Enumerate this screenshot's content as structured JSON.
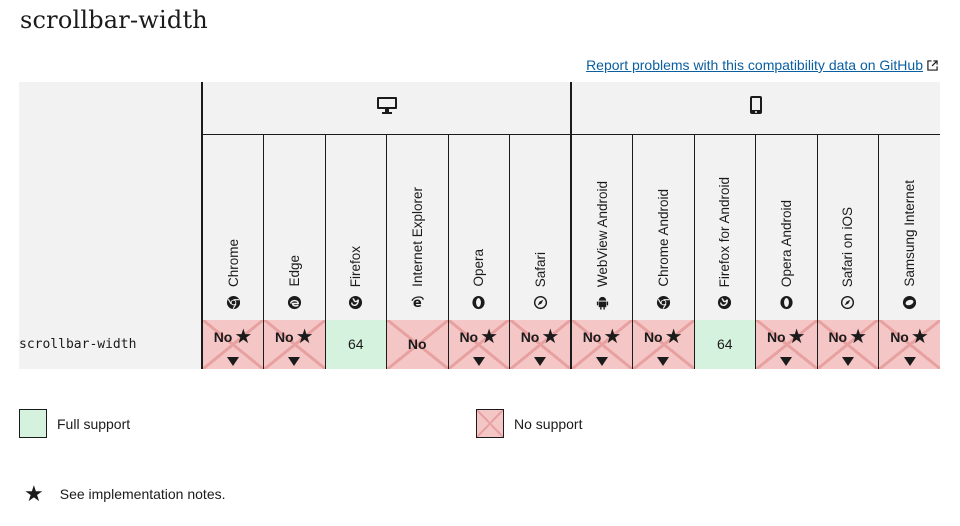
{
  "title": "scrollbar-width",
  "report_link": {
    "label": "Report problems with this compatibility data on GitHub"
  },
  "platforms": [
    {
      "name": "desktop",
      "icon": "desktop-icon"
    },
    {
      "name": "mobile",
      "icon": "mobile-icon"
    }
  ],
  "browsers": [
    {
      "name": "Chrome",
      "icon": "chrome-icon"
    },
    {
      "name": "Edge",
      "icon": "edge-icon"
    },
    {
      "name": "Firefox",
      "icon": "firefox-icon"
    },
    {
      "name": "Internet Explorer",
      "icon": "ie-icon"
    },
    {
      "name": "Opera",
      "icon": "opera-icon"
    },
    {
      "name": "Safari",
      "icon": "safari-icon"
    },
    {
      "name": "WebView Android",
      "icon": "android-icon"
    },
    {
      "name": "Chrome Android",
      "icon": "chrome-icon"
    },
    {
      "name": "Firefox for Android",
      "icon": "firefox-icon"
    },
    {
      "name": "Opera Android",
      "icon": "opera-icon"
    },
    {
      "name": "Safari on iOS",
      "icon": "safari-icon"
    },
    {
      "name": "Samsung Internet",
      "icon": "samsung-icon"
    }
  ],
  "feature": {
    "name": "scrollbar-width",
    "support": [
      {
        "label": "No",
        "status": "no",
        "notes": true
      },
      {
        "label": "No",
        "status": "no",
        "notes": true
      },
      {
        "label": "64",
        "status": "yes",
        "notes": false
      },
      {
        "label": "No",
        "status": "no",
        "notes": false
      },
      {
        "label": "No",
        "status": "no",
        "notes": true
      },
      {
        "label": "No",
        "status": "no",
        "notes": true
      },
      {
        "label": "No",
        "status": "no",
        "notes": true
      },
      {
        "label": "No",
        "status": "no",
        "notes": true
      },
      {
        "label": "64",
        "status": "yes",
        "notes": false
      },
      {
        "label": "No",
        "status": "no",
        "notes": true
      },
      {
        "label": "No",
        "status": "no",
        "notes": true
      },
      {
        "label": "No",
        "status": "no",
        "notes": true
      }
    ]
  },
  "legend": {
    "full_support": "Full support",
    "no_support": "No support",
    "notes": "See implementation notes."
  },
  "colors": {
    "full_support": "#d5f2de",
    "no_support": "#f5c6c6",
    "link": "#0b5fa1"
  }
}
